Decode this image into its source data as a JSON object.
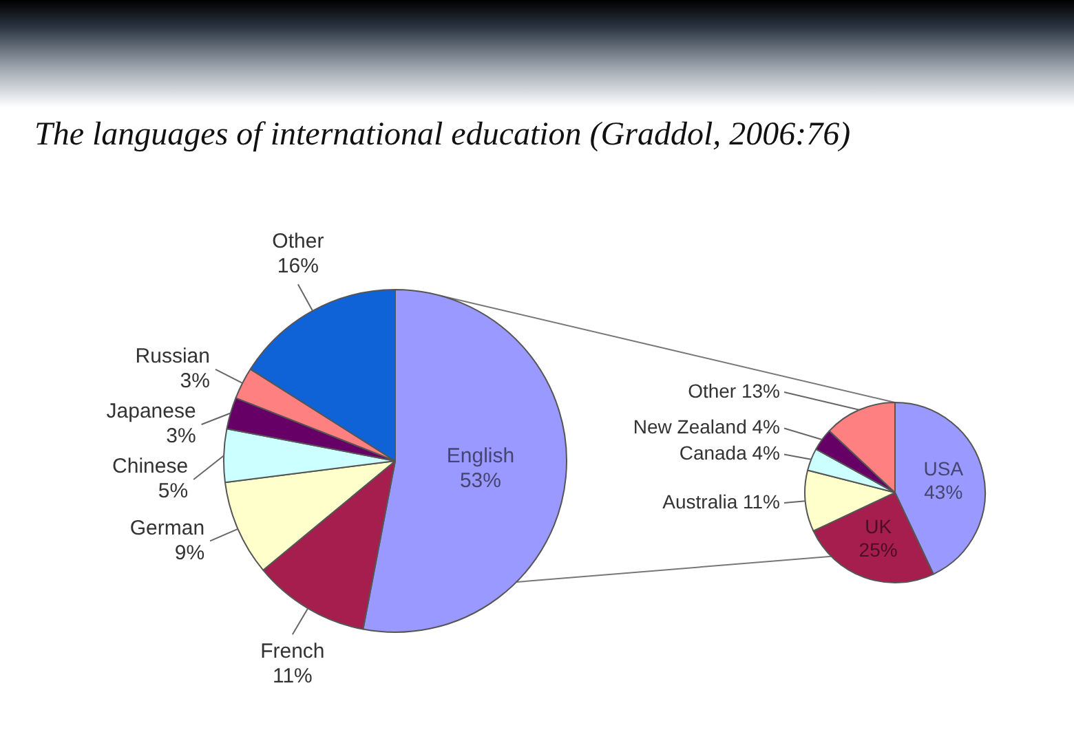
{
  "chart_data": [
    {
      "type": "pie",
      "title": "The languages of international education (Graddol, 2006:76)",
      "categories": [
        "English",
        "French",
        "German",
        "Chinese",
        "Japanese",
        "Russian",
        "Other"
      ],
      "values": [
        53,
        11,
        9,
        5,
        3,
        3,
        16
      ],
      "value_labels": [
        "53%",
        "11%",
        "9%",
        "5%",
        "3%",
        "3%",
        "16%"
      ],
      "colors": [
        "#9999ff",
        "#a61e4d",
        "#ffffcc",
        "#ccffff",
        "#660066",
        "#ff8080",
        "#0f63d6"
      ]
    },
    {
      "type": "pie",
      "categories": [
        "USA",
        "UK",
        "Australia",
        "Canada",
        "New Zealand",
        "Other"
      ],
      "values": [
        43,
        25,
        11,
        4,
        4,
        13
      ],
      "value_labels": [
        "43%",
        "25%",
        "11%",
        "4%",
        "4%",
        "13%"
      ],
      "colors": [
        "#9999ff",
        "#a61e4d",
        "#ffffcc",
        "#ccffff",
        "#660066",
        "#ff8080"
      ]
    }
  ]
}
